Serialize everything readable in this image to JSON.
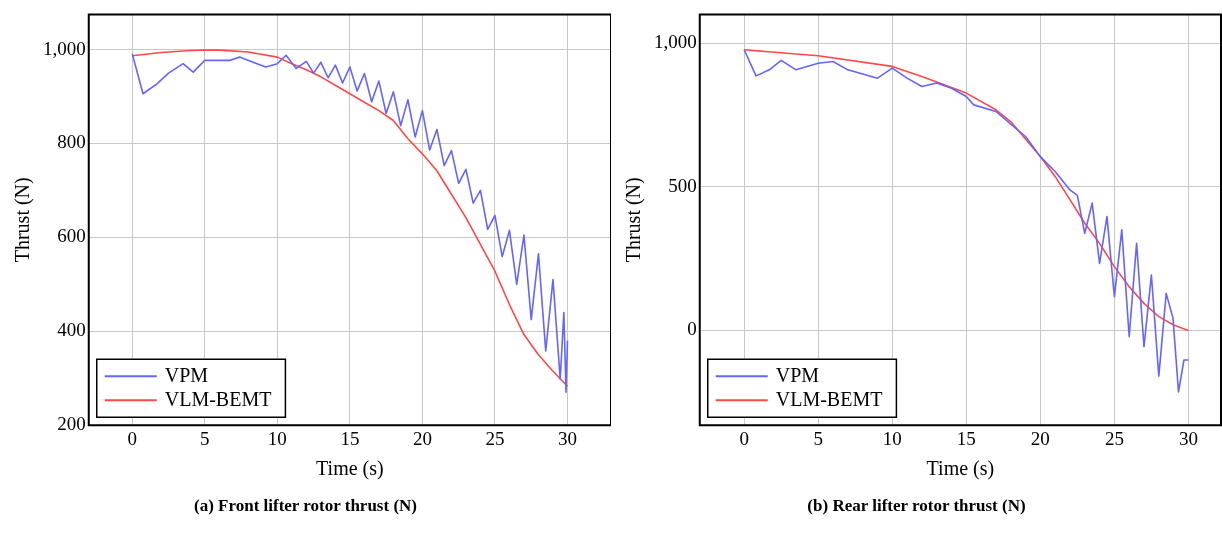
{
  "chart_data": [
    {
      "type": "line",
      "title": "(a) Front lifter rotor thrust (N)",
      "xlabel": "Time (s)",
      "ylabel": "Thrust (N)",
      "xlim": [
        -3,
        33
      ],
      "ylim": [
        200,
        1075
      ],
      "xticks": [
        0,
        5,
        10,
        15,
        20,
        25,
        30
      ],
      "yticks": [
        200,
        400,
        600,
        800,
        {
          "value": 1000,
          "label": "1,000"
        }
      ],
      "grid": true,
      "legend": "bottom left",
      "line_style": "solid",
      "marker": "none",
      "series": [
        {
          "name": "VPM",
          "color": "#6464ff",
          "x": [
            0,
            0.74,
            1.7,
            2.5,
            3.5,
            4.2,
            5,
            6.7,
            7.4,
            9.2,
            10,
            10.6,
            11.3,
            12,
            12.5,
            13,
            13.5,
            14,
            14.5,
            15,
            15.5,
            16,
            16.5,
            17,
            17.5,
            18,
            18.5,
            19,
            19.5,
            20,
            20.5,
            21,
            21.5,
            22,
            22.5,
            23,
            23.5,
            24,
            24.5,
            25,
            25.5,
            26,
            26.5,
            27,
            27.5,
            28,
            28.5,
            29,
            29.5,
            29.75,
            29.9,
            30
          ],
          "values": [
            991,
            906,
            927,
            950,
            970,
            952,
            977,
            977,
            984,
            963,
            970,
            988,
            960,
            975,
            950,
            973,
            940,
            967,
            929,
            963,
            912,
            949,
            889,
            933,
            864,
            910,
            838,
            893,
            814,
            870,
            786,
            830,
            753,
            785,
            715,
            745,
            673,
            700,
            617,
            647,
            559,
            615,
            500,
            605,
            425,
            565,
            358,
            510,
            298,
            440,
            270,
            380
          ]
        },
        {
          "name": "VLM-BEMT",
          "color": "#ff4848",
          "x": [
            0,
            2,
            4,
            5,
            6,
            8,
            10,
            11,
            12,
            13,
            14,
            15,
            16,
            17,
            18,
            19,
            20,
            21,
            22,
            23,
            24,
            25,
            26,
            27,
            28,
            29,
            30
          ],
          "values": [
            987,
            994,
            998,
            999,
            999,
            995,
            984,
            970,
            957,
            942,
            924,
            906,
            888,
            870,
            849,
            810,
            778,
            742,
            692,
            642,
            585,
            528,
            457,
            393,
            350,
            315,
            283
          ]
        }
      ]
    },
    {
      "type": "line",
      "title": "(b) Rear lifter rotor thrust (N)",
      "xlabel": "Time (s)",
      "ylabel": "Thrust (N)",
      "xlim": [
        -3,
        32.2
      ],
      "ylim": [
        -330,
        1100
      ],
      "xticks": [
        0,
        5,
        10,
        15,
        20,
        25,
        30
      ],
      "yticks": [
        0,
        500,
        {
          "value": 1000,
          "label": "1,000"
        }
      ],
      "grid": true,
      "legend": "bottom left",
      "line_style": "solid",
      "marker": "none",
      "series": [
        {
          "name": "VPM",
          "color": "#6464ff",
          "x": [
            0,
            0.8,
            1.7,
            2.5,
            3.5,
            5,
            6,
            7,
            9,
            10,
            11,
            12,
            13,
            14,
            15,
            15.5,
            17,
            19,
            20,
            21,
            22,
            22.5,
            23,
            23.5,
            24,
            24.5,
            25,
            25.5,
            26,
            26.5,
            27,
            27.5,
            28,
            28.5,
            28.96,
            29.33,
            29.7,
            30
          ],
          "values": [
            977,
            886,
            907,
            940,
            907,
            930,
            936,
            907,
            878,
            913,
            878,
            849,
            861,
            843,
            814,
            785,
            762,
            675,
            605,
            553,
            489,
            470,
            338,
            443,
            233,
            396,
            117,
            350,
            -22,
            303,
            -57,
            193,
            -159,
            129,
            42,
            -214,
            -103,
            -103
          ]
        },
        {
          "name": "VLM-BEMT",
          "color": "#ff4848",
          "x": [
            0,
            5,
            10,
            12,
            15,
            17,
            18,
            20,
            21,
            22,
            23,
            24,
            25,
            26,
            27,
            28,
            29,
            30
          ],
          "values": [
            977,
            956,
            919,
            884,
            826,
            768,
            727,
            605,
            536,
            455,
            373,
            303,
            222,
            152,
            94,
            48,
            19,
            0
          ]
        }
      ]
    }
  ]
}
